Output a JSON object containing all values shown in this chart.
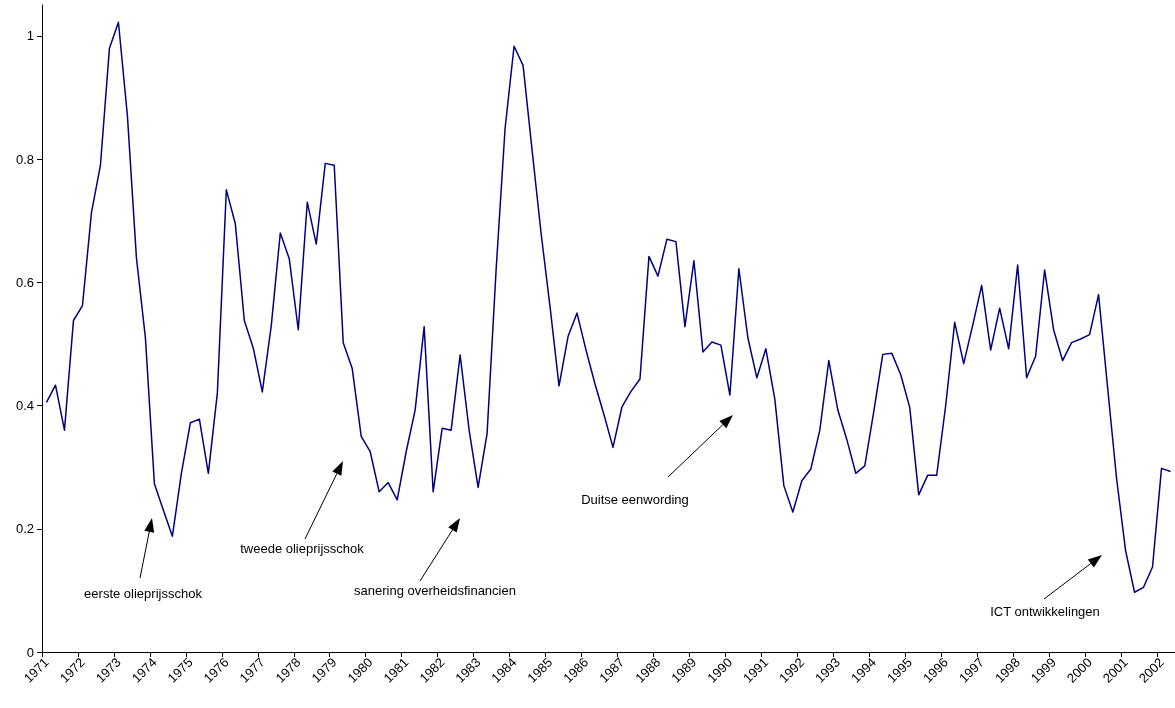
{
  "chart_data": {
    "type": "line",
    "color": "#000080",
    "marker": "none",
    "line_style": "solid",
    "categories": [
      "1971",
      null,
      null,
      null,
      "1972",
      null,
      null,
      null,
      "1973",
      null,
      null,
      null,
      "1974",
      null,
      null,
      null,
      "1975",
      null,
      null,
      null,
      "1976",
      null,
      null,
      null,
      "1977",
      null,
      null,
      null,
      "1978",
      null,
      null,
      null,
      "1979",
      null,
      null,
      null,
      "1980",
      null,
      null,
      null,
      "1981",
      null,
      null,
      null,
      "1982",
      null,
      null,
      null,
      "1983",
      null,
      null,
      null,
      "1984",
      null,
      null,
      null,
      "1985",
      null,
      null,
      null,
      "1986",
      null,
      null,
      null,
      "1987",
      null,
      null,
      null,
      "1988",
      null,
      null,
      null,
      "1989",
      null,
      null,
      null,
      "1990",
      null,
      null,
      null,
      "1991",
      null,
      null,
      null,
      "1992",
      null,
      null,
      null,
      "1993",
      null,
      null,
      null,
      "1994",
      null,
      null,
      null,
      "1995",
      null,
      null,
      null,
      "1996",
      null,
      null,
      null,
      "1997",
      null,
      null,
      null,
      "1998",
      null,
      null,
      null,
      "1999",
      null,
      null,
      null,
      "2000",
      null,
      null,
      null,
      "2001",
      null,
      null,
      null,
      "2002",
      null
    ],
    "values": [
      0.405,
      0.433,
      0.36,
      0.538,
      0.562,
      0.713,
      0.79,
      0.98,
      1.022,
      0.87,
      0.64,
      0.51,
      0.273,
      0.23,
      0.188,
      0.29,
      0.372,
      0.378,
      0.29,
      0.42,
      0.75,
      0.695,
      0.538,
      0.493,
      0.422,
      0.53,
      0.68,
      0.638,
      0.523,
      0.73,
      0.662,
      0.793,
      0.79,
      0.502,
      0.46,
      0.35,
      0.325,
      0.26,
      0.275,
      0.247,
      0.325,
      0.393,
      0.528,
      0.26,
      0.363,
      0.36,
      0.482,
      0.36,
      0.267,
      0.355,
      0.62,
      0.85,
      0.983,
      0.952,
      0.815,
      0.68,
      0.56,
      0.432,
      0.512,
      0.55,
      0.49,
      0.435,
      0.385,
      0.332,
      0.398,
      0.423,
      0.443,
      0.642,
      0.61,
      0.67,
      0.666,
      0.528,
      0.635,
      0.487,
      0.503,
      0.498,
      0.417,
      0.622,
      0.51,
      0.445,
      0.492,
      0.41,
      0.27,
      0.227,
      0.278,
      0.297,
      0.36,
      0.473,
      0.393,
      0.345,
      0.29,
      0.302,
      0.39,
      0.483,
      0.485,
      0.45,
      0.397,
      0.255,
      0.287,
      0.287,
      0.4,
      0.535,
      0.468,
      0.53,
      0.595,
      0.49,
      0.558,
      0.492,
      0.628,
      0.445,
      0.48,
      0.62,
      0.523,
      0.473,
      0.502,
      0.508,
      0.515,
      0.58,
      0.43,
      0.282,
      0.165,
      0.097,
      0.105,
      0.138,
      0.298,
      0.293
    ],
    "ylim": [
      0,
      1.05
    ],
    "yticks": [
      0,
      0.2,
      0.4,
      0.6,
      0.8,
      1
    ],
    "annotations": [
      "eerste olieprijsschok",
      "tweede olieprijsschok",
      "sanering overheidsfinancien",
      "Duitse eenwording",
      "ICT ontwikkelingen"
    ]
  }
}
